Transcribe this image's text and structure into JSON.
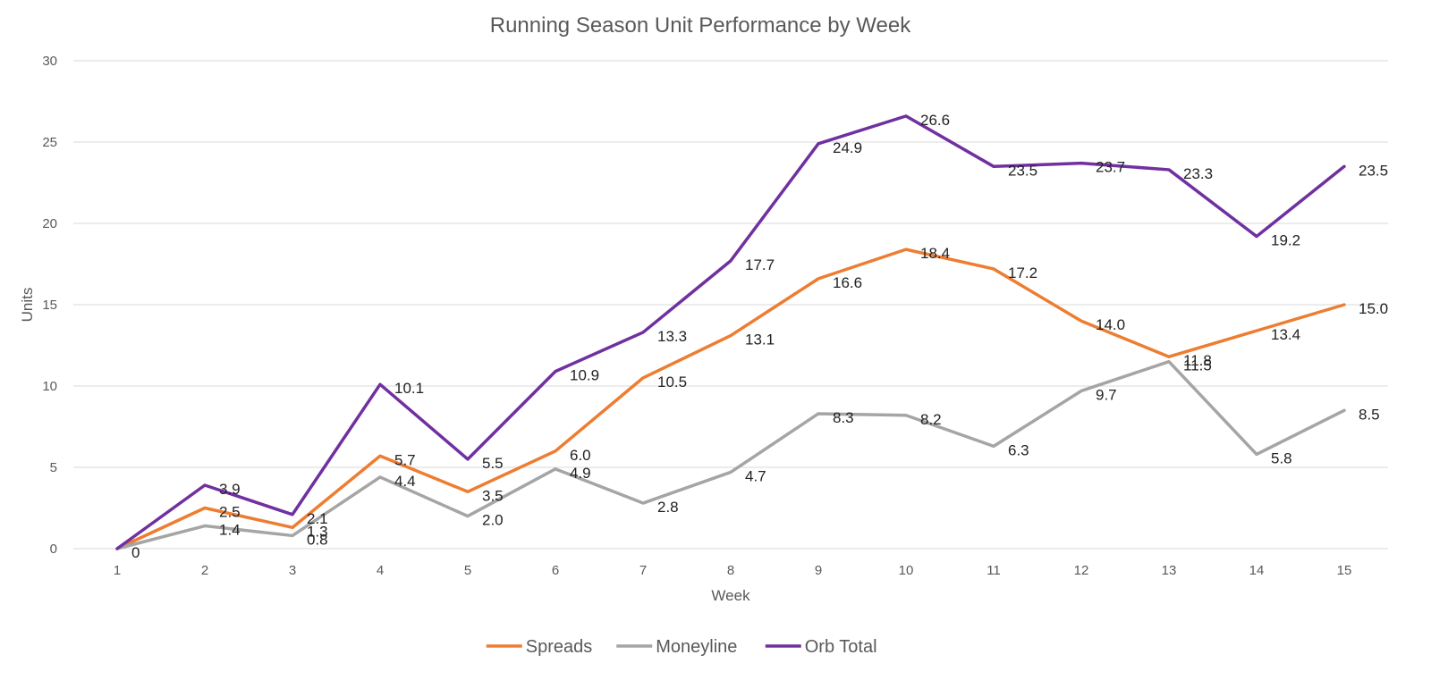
{
  "chart_data": {
    "type": "line",
    "title": "Running Season Unit Performance by Week",
    "xlabel": "Week",
    "ylabel": "Units",
    "x": [
      1,
      2,
      3,
      4,
      5,
      6,
      7,
      8,
      9,
      10,
      11,
      12,
      13,
      14,
      15
    ],
    "ylim": [
      0,
      30
    ],
    "yticks": [
      0,
      5,
      10,
      15,
      20,
      25,
      30
    ],
    "grid": true,
    "legend_position": "bottom",
    "series": [
      {
        "name": "Spreads",
        "color": "#ED7D31",
        "values": [
          0,
          2.5,
          1.3,
          5.7,
          3.5,
          6.0,
          10.5,
          13.1,
          16.6,
          18.4,
          17.2,
          14.0,
          11.8,
          13.4,
          15.0
        ],
        "labels": [
          "",
          "2.5",
          "1.3",
          "5.7",
          "3.5",
          "6.0",
          "10.5",
          "13.1",
          "16.6",
          "18.4",
          "17.2",
          "14.0",
          "11.8",
          "13.4",
          "15.0"
        ]
      },
      {
        "name": "Moneyline",
        "color": "#A5A5A5",
        "values": [
          0,
          1.4,
          0.8,
          4.4,
          2.0,
          4.9,
          2.8,
          4.7,
          8.3,
          8.2,
          6.3,
          9.7,
          11.5,
          5.8,
          8.5
        ],
        "labels": [
          "",
          "1.4",
          "0.8",
          "4.4",
          "2.0",
          "4.9",
          "2.8",
          "4.7",
          "8.3",
          "8.2",
          "6.3",
          "9.7",
          "11.5",
          "5.8",
          "8.5"
        ]
      },
      {
        "name": "Orb Total",
        "color": "#7030A0",
        "values": [
          0,
          3.9,
          2.1,
          10.1,
          5.5,
          10.9,
          13.3,
          17.7,
          24.9,
          26.6,
          23.5,
          23.7,
          23.3,
          19.2,
          23.5
        ],
        "labels": [
          "0",
          "3.9",
          "2.1",
          "10.1",
          "5.5",
          "10.9",
          "13.3",
          "17.7",
          "24.9",
          "26.6",
          "23.5",
          "23.7",
          "23.3",
          "19.2",
          "23.5"
        ]
      }
    ]
  }
}
